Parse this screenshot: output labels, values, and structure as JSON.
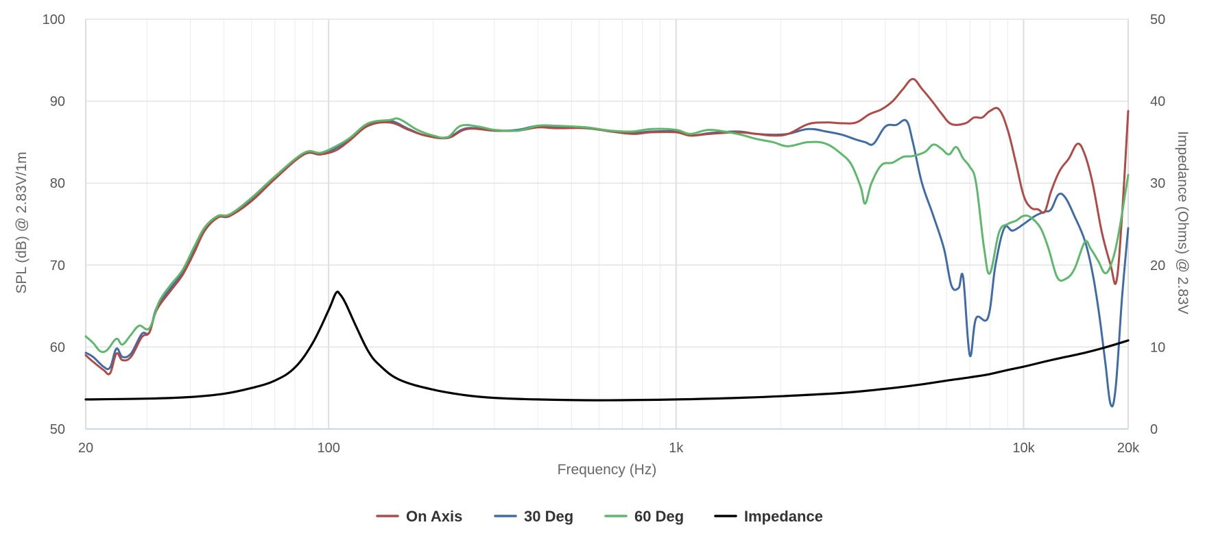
{
  "chart_data": {
    "type": "line",
    "xlabel": "Frequency (Hz)",
    "ylabel": "SPL (dB) @ 2.83V/1m",
    "y2label": "Impedance (Ohms) @ 2.83V",
    "x_scale": "log",
    "xlim": [
      20,
      20000
    ],
    "ylim": [
      50,
      100
    ],
    "y2lim": [
      0,
      50
    ],
    "grid": true,
    "legend_position": "bottom-center",
    "x_ticks": [
      {
        "value": 20,
        "label": "20"
      },
      {
        "value": 100,
        "label": "100"
      },
      {
        "value": 1000,
        "label": "1k"
      },
      {
        "value": 10000,
        "label": "10k"
      },
      {
        "value": 20000,
        "label": "20k"
      }
    ],
    "y_ticks": [
      "50",
      "60",
      "70",
      "80",
      "90",
      "100"
    ],
    "y2_ticks": [
      "0",
      "10",
      "20",
      "30",
      "40",
      "50"
    ],
    "series": [
      {
        "name": "On Axis",
        "color": "#b04a46",
        "axis": "left",
        "points": [
          [
            20,
            59
          ],
          [
            21,
            58.2
          ],
          [
            22.5,
            57.2
          ],
          [
            23.5,
            56.8
          ],
          [
            24.5,
            59.2
          ],
          [
            25.5,
            58.4
          ],
          [
            27,
            58.8
          ],
          [
            29,
            61.2
          ],
          [
            30.5,
            61.8
          ],
          [
            32,
            64.5
          ],
          [
            35,
            66.8
          ],
          [
            38,
            68.8
          ],
          [
            41,
            71.5
          ],
          [
            44,
            74.2
          ],
          [
            48,
            75.8
          ],
          [
            52,
            76
          ],
          [
            60,
            77.8
          ],
          [
            70,
            80.5
          ],
          [
            85,
            83.5
          ],
          [
            95,
            83.5
          ],
          [
            105,
            84
          ],
          [
            115,
            85.2
          ],
          [
            130,
            87
          ],
          [
            150,
            87.4
          ],
          [
            170,
            86.5
          ],
          [
            190,
            85.8
          ],
          [
            220,
            85.5
          ],
          [
            250,
            86.6
          ],
          [
            300,
            86.4
          ],
          [
            350,
            86.4
          ],
          [
            400,
            86.8
          ],
          [
            450,
            86.7
          ],
          [
            550,
            86.7
          ],
          [
            650,
            86.3
          ],
          [
            750,
            86
          ],
          [
            850,
            86.2
          ],
          [
            1000,
            86.2
          ],
          [
            1100,
            85.8
          ],
          [
            1250,
            86
          ],
          [
            1500,
            86.2
          ],
          [
            1700,
            86
          ],
          [
            1900,
            85.8
          ],
          [
            2100,
            86
          ],
          [
            2400,
            87.2
          ],
          [
            2700,
            87.4
          ],
          [
            3000,
            87.3
          ],
          [
            3300,
            87.4
          ],
          [
            3600,
            88.4
          ],
          [
            3900,
            89
          ],
          [
            4200,
            90
          ],
          [
            4500,
            91.5
          ],
          [
            4800,
            92.7
          ],
          [
            5100,
            91.5
          ],
          [
            5500,
            89.8
          ],
          [
            5800,
            88.5
          ],
          [
            6200,
            87.2
          ],
          [
            6800,
            87.3
          ],
          [
            7200,
            88
          ],
          [
            7600,
            88
          ],
          [
            8000,
            88.8
          ],
          [
            8500,
            89
          ],
          [
            9000,
            86.5
          ],
          [
            9500,
            82.5
          ],
          [
            10000,
            78.5
          ],
          [
            10500,
            77
          ],
          [
            11000,
            76.8
          ],
          [
            11500,
            76.5
          ],
          [
            12000,
            79
          ],
          [
            12700,
            81.5
          ],
          [
            13500,
            83
          ],
          [
            14300,
            84.8
          ],
          [
            15000,
            83.5
          ],
          [
            15800,
            80
          ],
          [
            16800,
            74
          ],
          [
            17800,
            70
          ],
          [
            18500,
            68
          ],
          [
            19200,
            76
          ],
          [
            20000,
            88.8
          ]
        ]
      },
      {
        "name": "30 Deg",
        "color": "#3f6ca8",
        "axis": "left",
        "points": [
          [
            20,
            59.3
          ],
          [
            21,
            58.8
          ],
          [
            22.5,
            57.6
          ],
          [
            23.5,
            57.5
          ],
          [
            24.5,
            59.8
          ],
          [
            25.5,
            58.8
          ],
          [
            27,
            59.2
          ],
          [
            29,
            61.6
          ],
          [
            30.5,
            61.8
          ],
          [
            32,
            64.8
          ],
          [
            35,
            67.1
          ],
          [
            38,
            69.1
          ],
          [
            41,
            71.8
          ],
          [
            44,
            74.5
          ],
          [
            48,
            75.9
          ],
          [
            52,
            76
          ],
          [
            60,
            78
          ],
          [
            70,
            80.6
          ],
          [
            85,
            83.5
          ],
          [
            95,
            83.5
          ],
          [
            105,
            84.3
          ],
          [
            115,
            85.4
          ],
          [
            130,
            87.2
          ],
          [
            150,
            87.6
          ],
          [
            170,
            86.6
          ],
          [
            190,
            85.8
          ],
          [
            220,
            85.6
          ],
          [
            250,
            86.7
          ],
          [
            300,
            86.4
          ],
          [
            350,
            86.5
          ],
          [
            400,
            87
          ],
          [
            450,
            86.9
          ],
          [
            550,
            86.8
          ],
          [
            650,
            86.3
          ],
          [
            750,
            86.1
          ],
          [
            850,
            86.3
          ],
          [
            1000,
            86.3
          ],
          [
            1100,
            85.8
          ],
          [
            1250,
            86.1
          ],
          [
            1500,
            86.3
          ],
          [
            1700,
            86
          ],
          [
            1900,
            85.9
          ],
          [
            2100,
            86
          ],
          [
            2400,
            86.6
          ],
          [
            2700,
            86.3
          ],
          [
            3000,
            85.9
          ],
          [
            3300,
            85.3
          ],
          [
            3500,
            85
          ],
          [
            3700,
            84.8
          ],
          [
            4000,
            86.9
          ],
          [
            4300,
            87.1
          ],
          [
            4600,
            87.6
          ],
          [
            4800,
            85
          ],
          [
            5100,
            80
          ],
          [
            5500,
            76
          ],
          [
            5900,
            72
          ],
          [
            6200,
            67.5
          ],
          [
            6500,
            67.2
          ],
          [
            6700,
            68.5
          ],
          [
            7000,
            59
          ],
          [
            7300,
            63.5
          ],
          [
            7900,
            63.6
          ],
          [
            8300,
            70
          ],
          [
            8800,
            74.5
          ],
          [
            9300,
            74.2
          ],
          [
            10000,
            75
          ],
          [
            10800,
            76
          ],
          [
            11500,
            76.5
          ],
          [
            12000,
            76.8
          ],
          [
            12600,
            78.6
          ],
          [
            13200,
            78.2
          ],
          [
            14000,
            76
          ],
          [
            15000,
            73
          ],
          [
            15800,
            69
          ],
          [
            16500,
            64
          ],
          [
            17200,
            58
          ],
          [
            17800,
            53
          ],
          [
            18400,
            55
          ],
          [
            19200,
            66
          ],
          [
            20000,
            74.5
          ]
        ]
      },
      {
        "name": "60 Deg",
        "color": "#5cb86a",
        "axis": "left",
        "points": [
          [
            20,
            61.3
          ],
          [
            21,
            60.5
          ],
          [
            22,
            59.5
          ],
          [
            23,
            59.6
          ],
          [
            24.5,
            61
          ],
          [
            25.5,
            60.3
          ],
          [
            27,
            61.5
          ],
          [
            28.5,
            62.6
          ],
          [
            30.5,
            62.3
          ],
          [
            32.5,
            65.5
          ],
          [
            35,
            67.5
          ],
          [
            38,
            69.4
          ],
          [
            41,
            72.2
          ],
          [
            44,
            74.6
          ],
          [
            48,
            76
          ],
          [
            52,
            76.2
          ],
          [
            60,
            78.2
          ],
          [
            70,
            80.8
          ],
          [
            85,
            83.7
          ],
          [
            95,
            83.7
          ],
          [
            105,
            84.5
          ],
          [
            115,
            85.5
          ],
          [
            130,
            87.3
          ],
          [
            150,
            87.7
          ],
          [
            160,
            87.8
          ],
          [
            180,
            86.5
          ],
          [
            200,
            85.8
          ],
          [
            220,
            85.6
          ],
          [
            240,
            87
          ],
          [
            270,
            86.9
          ],
          [
            300,
            86.5
          ],
          [
            350,
            86.4
          ],
          [
            400,
            87
          ],
          [
            450,
            87
          ],
          [
            550,
            86.8
          ],
          [
            650,
            86.4
          ],
          [
            750,
            86.3
          ],
          [
            850,
            86.6
          ],
          [
            1000,
            86.5
          ],
          [
            1100,
            86
          ],
          [
            1250,
            86.5
          ],
          [
            1500,
            86
          ],
          [
            1700,
            85.4
          ],
          [
            1900,
            85
          ],
          [
            2100,
            84.5
          ],
          [
            2400,
            85
          ],
          [
            2700,
            84.8
          ],
          [
            3000,
            83.5
          ],
          [
            3200,
            82.2
          ],
          [
            3400,
            79.5
          ],
          [
            3500,
            77.5
          ],
          [
            3650,
            80
          ],
          [
            3900,
            82.2
          ],
          [
            4200,
            82.5
          ],
          [
            4500,
            83.2
          ],
          [
            4800,
            83.3
          ],
          [
            5200,
            83.8
          ],
          [
            5500,
            84.7
          ],
          [
            5800,
            84.2
          ],
          [
            6100,
            83.5
          ],
          [
            6400,
            84.4
          ],
          [
            6700,
            83
          ],
          [
            7000,
            82
          ],
          [
            7300,
            80
          ],
          [
            7700,
            72
          ],
          [
            8000,
            69
          ],
          [
            8500,
            74
          ],
          [
            9000,
            75
          ],
          [
            9500,
            75.4
          ],
          [
            10000,
            76
          ],
          [
            10500,
            75.8
          ],
          [
            11200,
            74.5
          ],
          [
            11800,
            72
          ],
          [
            12500,
            68.5
          ],
          [
            13200,
            68.3
          ],
          [
            14000,
            69.5
          ],
          [
            15000,
            72.8
          ],
          [
            15600,
            72
          ],
          [
            16400,
            70.5
          ],
          [
            17200,
            69
          ],
          [
            18000,
            70.5
          ],
          [
            18800,
            74
          ],
          [
            20000,
            81
          ]
        ]
      },
      {
        "name": "Impedance",
        "color": "#000000",
        "axis": "right",
        "points": [
          [
            20,
            3.6
          ],
          [
            30,
            3.7
          ],
          [
            40,
            3.9
          ],
          [
            50,
            4.3
          ],
          [
            60,
            5
          ],
          [
            70,
            5.9
          ],
          [
            80,
            7.5
          ],
          [
            90,
            10.5
          ],
          [
            100,
            14.5
          ],
          [
            105,
            16.6
          ],
          [
            108,
            16.4
          ],
          [
            112,
            15.3
          ],
          [
            120,
            12.5
          ],
          [
            130,
            9.5
          ],
          [
            140,
            7.8
          ],
          [
            160,
            6
          ],
          [
            200,
            4.8
          ],
          [
            250,
            4.1
          ],
          [
            300,
            3.8
          ],
          [
            400,
            3.6
          ],
          [
            600,
            3.5
          ],
          [
            1000,
            3.6
          ],
          [
            1500,
            3.8
          ],
          [
            2000,
            4
          ],
          [
            3000,
            4.4
          ],
          [
            4000,
            4.9
          ],
          [
            5000,
            5.4
          ],
          [
            6000,
            5.9
          ],
          [
            7000,
            6.3
          ],
          [
            8000,
            6.7
          ],
          [
            9000,
            7.2
          ],
          [
            10000,
            7.6
          ],
          [
            12000,
            8.4
          ],
          [
            15000,
            9.3
          ],
          [
            17000,
            9.9
          ],
          [
            20000,
            10.8
          ]
        ]
      }
    ]
  }
}
